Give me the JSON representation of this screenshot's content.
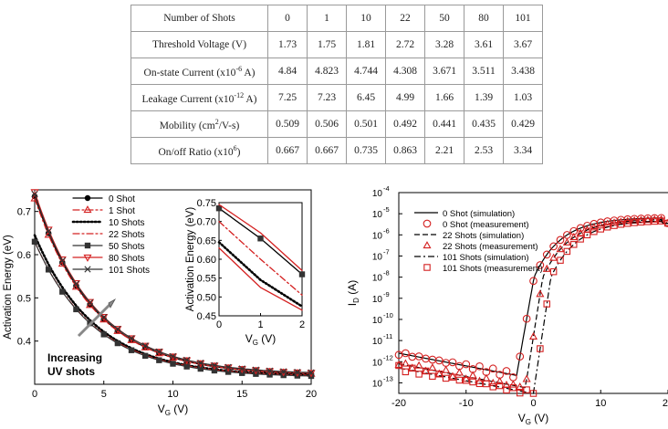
{
  "table": {
    "rows": [
      {
        "label_pre": "Number of Shots",
        "label_sup": "",
        "label_post": "",
        "values": [
          "0",
          "1",
          "10",
          "22",
          "50",
          "80",
          "101"
        ]
      },
      {
        "label_pre": "Threshold Voltage (V)",
        "label_sup": "",
        "label_post": "",
        "values": [
          "1.73",
          "1.75",
          "1.81",
          "2.72",
          "3.28",
          "3.61",
          "3.67"
        ]
      },
      {
        "label_pre": "On-state Current (x10",
        "label_sup": "-6",
        "label_post": " A)",
        "values": [
          "4.84",
          "4.823",
          "4.744",
          "4.308",
          "3.671",
          "3.511",
          "3.438"
        ]
      },
      {
        "label_pre": "Leakage Current (x10",
        "label_sup": "-12",
        "label_post": " A)",
        "values": [
          "7.25",
          "7.23",
          "6.45",
          "4.99",
          "1.66",
          "1.39",
          "1.03"
        ]
      },
      {
        "label_pre": "Mobility (cm",
        "label_sup": "2",
        "label_post": "/V-s)",
        "values": [
          "0.509",
          "0.506",
          "0.501",
          "0.492",
          "0.441",
          "0.435",
          "0.429"
        ]
      },
      {
        "label_pre": "On/off Ratio (x10",
        "label_sup": "6",
        "label_post": ")",
        "values": [
          "0.667",
          "0.667",
          "0.735",
          "0.863",
          "2.21",
          "2.53",
          "3.34"
        ]
      }
    ]
  },
  "chart_data": [
    {
      "type": "line",
      "xlabel": "V",
      "xlabel_sub": "G",
      "xlabel_unit": " (V)",
      "ylabel": "Activation Energy (eV)",
      "xlim": [
        0,
        20
      ],
      "ylim": [
        0.3,
        0.75
      ],
      "x_ticks": [
        "0",
        "5",
        "10",
        "15",
        "20"
      ],
      "y_ticks": [
        "0.4",
        "0.5",
        "0.6",
        "0.7"
      ],
      "annotation": [
        "Increasing",
        "UV shots"
      ],
      "legend_placement": "top-left",
      "series": [
        {
          "name": "0 Shot",
          "color": "#000000",
          "style": "solid-filled-circle",
          "y0": 0.735,
          "y20": 0.32
        },
        {
          "name": "1 Shot",
          "color": "#d42020",
          "style": "dashdot-open-triangle",
          "y0": 0.73,
          "y20": 0.32
        },
        {
          "name": "10 Shots",
          "color": "#000000",
          "style": "dotted",
          "y0": 0.645,
          "y20": 0.318
        },
        {
          "name": "22 Shots",
          "color": "#d42020",
          "style": "dashdot",
          "y0": 0.63,
          "y20": 0.318
        },
        {
          "name": "50 Shots",
          "color": "#333333",
          "style": "solid-filled-square",
          "y0": 0.63,
          "y20": 0.316
        },
        {
          "name": "80 Shots",
          "color": "#d42020",
          "style": "solid-open-downtriangle",
          "y0": 0.745,
          "y20": 0.322
        },
        {
          "name": "101 Shots",
          "color": "#333333",
          "style": "solid-x",
          "y0": 0.74,
          "y20": 0.323
        }
      ],
      "inset": {
        "ylabel": "Activation Energy (eV)",
        "xlabel": "V",
        "xlabel_sub": "G",
        "xlabel_unit": " (V)",
        "xlim": [
          0,
          2
        ],
        "ylim": [
          0.45,
          0.75
        ],
        "x_ticks": [
          "0",
          "1",
          "2"
        ],
        "y_ticks": [
          "0.45",
          "0.50",
          "0.55",
          "0.60",
          "0.65",
          "0.70",
          "0.75"
        ],
        "series": [
          {
            "color": "#000000",
            "style": "solid",
            "values": [
              0.735,
              0.655,
              0.56
            ]
          },
          {
            "color": "#d42020",
            "style": "solid",
            "values": [
              0.745,
              0.67,
              0.57
            ]
          },
          {
            "color": "#d42020",
            "style": "dashdot",
            "values": [
              0.7,
              0.6,
              0.505
            ]
          },
          {
            "color": "#000000",
            "style": "dotted",
            "values": [
              0.645,
              0.545,
              0.475
            ]
          },
          {
            "color": "#d42020",
            "style": "solid",
            "values": [
              0.63,
              0.525,
              0.465
            ]
          }
        ]
      }
    },
    {
      "type": "line",
      "xlabel": "V",
      "xlabel_sub": "G",
      "xlabel_unit": " (V)",
      "ylabel": "I",
      "ylabel_sub": "D",
      "ylabel_unit": " (A)",
      "y_scale": "log",
      "xlim": [
        -20,
        20
      ],
      "ylim_exp": [
        -13.5,
        -4
      ],
      "x_ticks": [
        "-20",
        "-10",
        "0",
        "10",
        "20"
      ],
      "y_tick_base": "10",
      "y_tick_exps": [
        "-13",
        "-12",
        "-11",
        "-10",
        "-9",
        "-8",
        "-7",
        "-6",
        "-5",
        "-4"
      ],
      "legend_placement": "top-left",
      "series": [
        {
          "name": "0 Shot (simulation)",
          "color": "#000000",
          "style": "solid",
          "vth": -0.5
        },
        {
          "name": "0 Shot (measurement)",
          "color": "#d42020",
          "style": "open-circle",
          "vth": -0.5
        },
        {
          "name": "22 Shots (simulation)",
          "color": "#000000",
          "style": "dashed",
          "vth": 0.8
        },
        {
          "name": "22 Shots (measurement)",
          "color": "#d42020",
          "style": "open-triangle",
          "vth": 0.8
        },
        {
          "name": "101 Shots (simulation)",
          "color": "#000000",
          "style": "dashdot",
          "vth": 2.0
        },
        {
          "name": "101 Shots (measurement)",
          "color": "#d42020",
          "style": "open-square",
          "vth": 2.0
        }
      ]
    }
  ]
}
